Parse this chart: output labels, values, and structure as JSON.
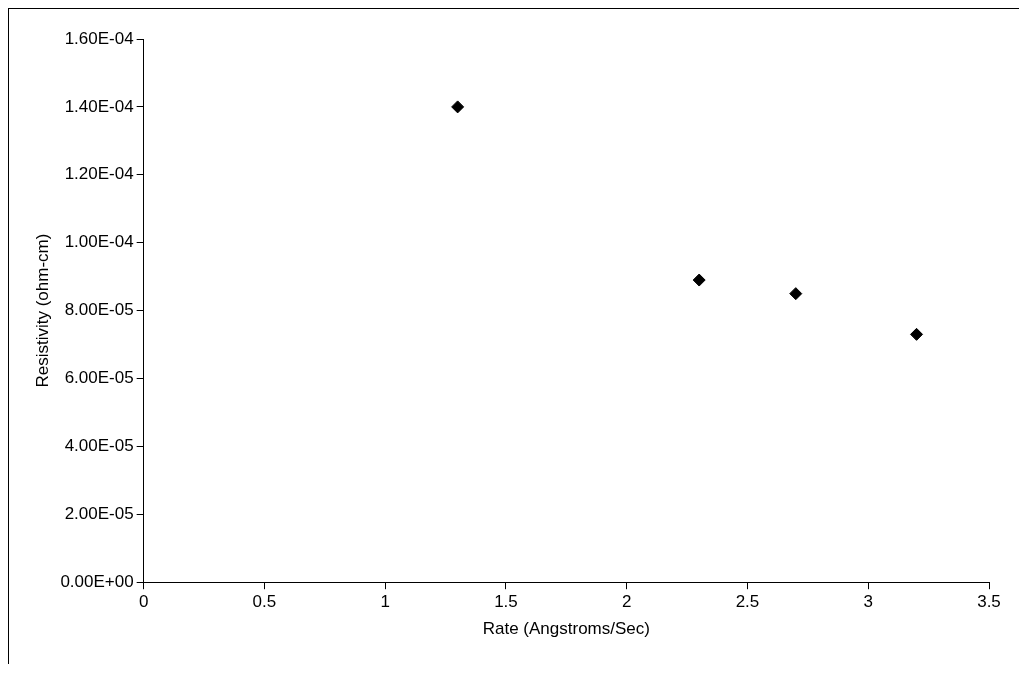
{
  "chart_data": {
    "type": "scatter",
    "xlabel": "Rate (Angstroms/Sec)",
    "ylabel": "Resistivity (ohm-cm)",
    "marker": "diamond",
    "series": [
      {
        "color": "#000000",
        "x": [
          1.3,
          2.3,
          2.7,
          3.2
        ],
        "values": [
          0.00014,
          8.9e-05,
          8.5e-05,
          7.3e-05
        ]
      }
    ],
    "xlim": [
      0,
      3.5
    ],
    "xticks": [
      0,
      0.5,
      1,
      1.5,
      2,
      2.5,
      3,
      3.5
    ],
    "ylim": [
      0,
      0.00016
    ],
    "yticks": [
      {
        "value": 0,
        "label": "0.00E+00"
      },
      {
        "value": 2e-05,
        "label": "2.00E-05"
      },
      {
        "value": 4e-05,
        "label": "4.00E-05"
      },
      {
        "value": 6e-05,
        "label": "6.00E-05"
      },
      {
        "value": 8e-05,
        "label": "8.00E-05"
      },
      {
        "value": 0.0001,
        "label": "1.00E-04"
      },
      {
        "value": 0.00012,
        "label": "1.20E-04"
      },
      {
        "value": 0.00014,
        "label": "1.40E-04"
      },
      {
        "value": 0.00016,
        "label": "1.60E-04"
      }
    ]
  }
}
